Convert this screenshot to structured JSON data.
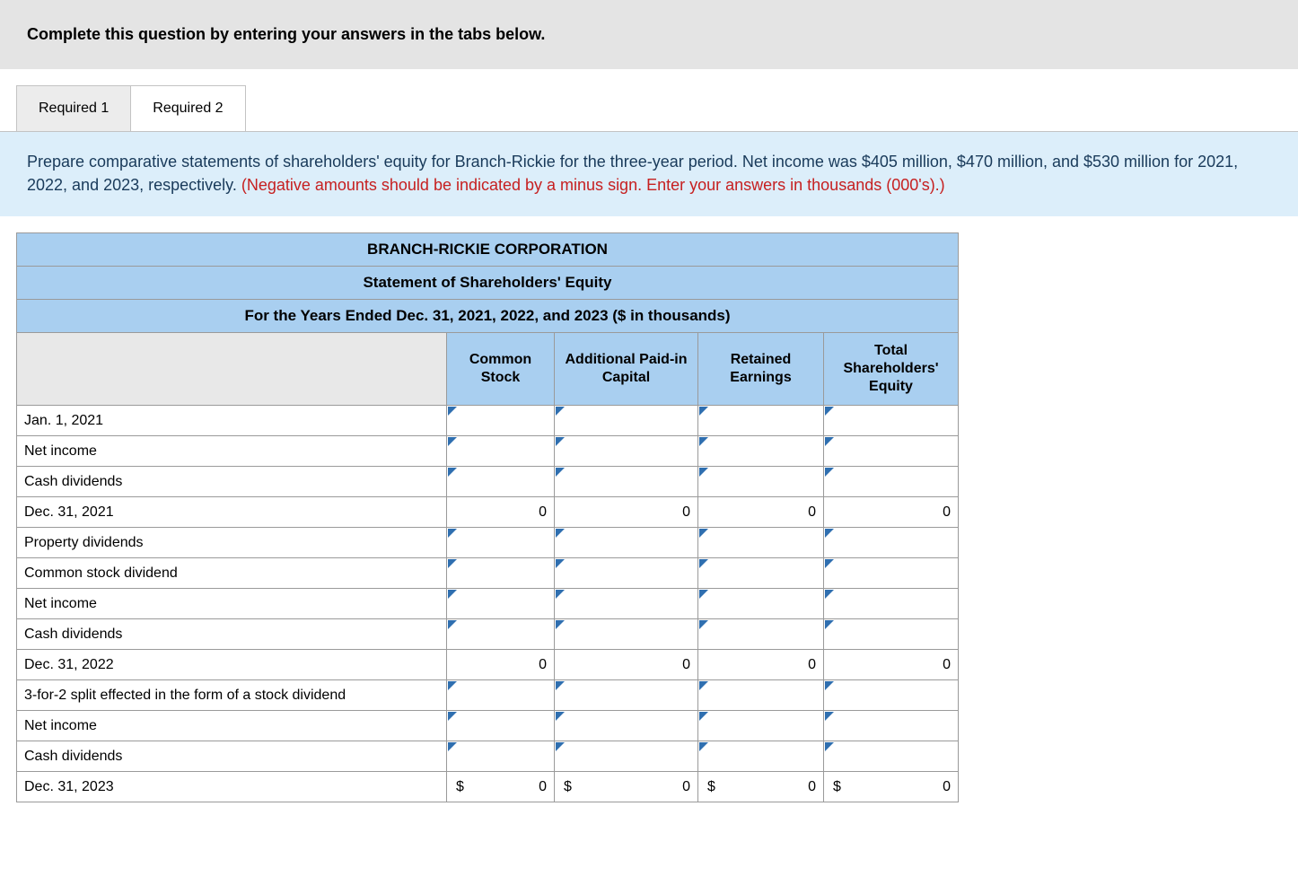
{
  "header": {
    "text": "Complete this question by entering your answers in the tabs below."
  },
  "tabs": [
    {
      "label": "Required 1",
      "active": true
    },
    {
      "label": "Required 2",
      "active": false
    }
  ],
  "instructions": {
    "main": "Prepare comparative statements of shareholders' equity for Branch-Rickie for the three-year period. Net income was $405 million, $470 million, and $530 million for 2021, 2022, and 2023, respectively. ",
    "warning": "(Negative amounts should be indicated by a minus sign. Enter your answers in thousands (000's).)"
  },
  "table": {
    "title1": "BRANCH-RICKIE CORPORATION",
    "title2": "Statement of Shareholders' Equity",
    "title3": "For the Years Ended Dec. 31, 2021, 2022, and 2023 ($ in thousands)",
    "columns": [
      "Common Stock",
      "Additional Paid-in Capital",
      "Retained Earnings",
      "Total Shareholders' Equity"
    ],
    "rows": [
      {
        "label": "Jan. 1, 2021",
        "editable": true,
        "vals": [
          "",
          "",
          "",
          ""
        ],
        "dollars": false
      },
      {
        "label": "Net income",
        "editable": true,
        "vals": [
          "",
          "",
          "",
          ""
        ],
        "dollars": false
      },
      {
        "label": "Cash dividends",
        "editable": true,
        "vals": [
          "",
          "",
          "",
          ""
        ],
        "dollars": false
      },
      {
        "label": "Dec. 31, 2021",
        "editable": false,
        "vals": [
          "0",
          "0",
          "0",
          "0"
        ],
        "dollars": false
      },
      {
        "label": "Property dividends",
        "editable": true,
        "vals": [
          "",
          "",
          "",
          ""
        ],
        "dollars": false
      },
      {
        "label": "Common stock dividend",
        "editable": true,
        "vals": [
          "",
          "",
          "",
          ""
        ],
        "dollars": false
      },
      {
        "label": "Net income",
        "editable": true,
        "vals": [
          "",
          "",
          "",
          ""
        ],
        "dollars": false
      },
      {
        "label": "Cash dividends",
        "editable": true,
        "vals": [
          "",
          "",
          "",
          ""
        ],
        "dollars": false
      },
      {
        "label": "Dec. 31, 2022",
        "editable": false,
        "vals": [
          "0",
          "0",
          "0",
          "0"
        ],
        "dollars": false
      },
      {
        "label": "3-for-2 split effected in the form of a stock dividend",
        "editable": true,
        "vals": [
          "",
          "",
          "",
          ""
        ],
        "dollars": false
      },
      {
        "label": "Net income",
        "editable": true,
        "vals": [
          "",
          "",
          "",
          ""
        ],
        "dollars": false
      },
      {
        "label": "Cash dividends",
        "editable": true,
        "vals": [
          "",
          "",
          "",
          ""
        ],
        "dollars": false
      },
      {
        "label": "Dec. 31, 2023",
        "editable": false,
        "vals": [
          "0",
          "0",
          "0",
          "0"
        ],
        "dollars": true
      }
    ]
  },
  "colors": {
    "header_bg": "#e4e4e4",
    "tab_active_bg": "#ececec",
    "instructions_bg": "#dceefa",
    "table_header_bg": "#a9cff0",
    "warning_text": "#c62020",
    "instruction_text": "#193a5a",
    "edit_flag": "#2f6fb0",
    "border": "#9a9a9a"
  }
}
